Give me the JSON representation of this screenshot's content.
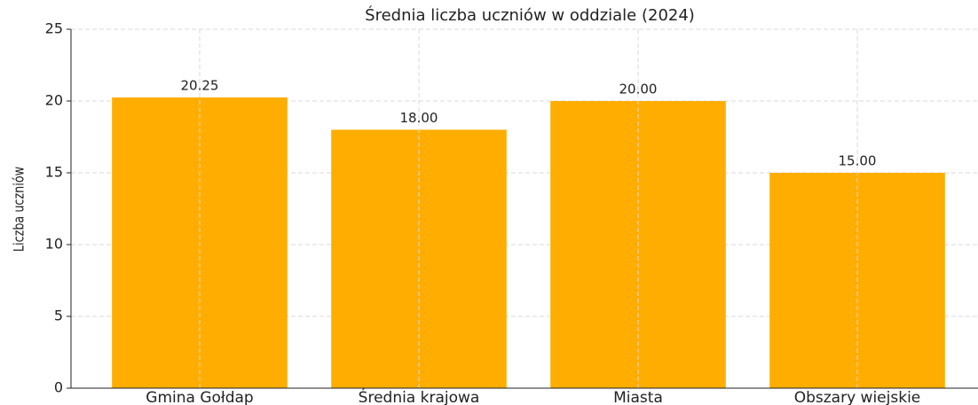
{
  "chart_data": {
    "type": "bar",
    "title": "Średnia liczba uczniów w oddziale (2024)",
    "y_label": "Liczba uczniów",
    "categories": [
      "Gmina Gołdap",
      "Średnia krajowa",
      "Miasta",
      "Obszary wiejskie"
    ],
    "values": [
      20.25,
      18,
      20,
      15
    ],
    "value_labels": [
      "20.25",
      "18.00",
      "20.00",
      "15.00"
    ],
    "color": "#ffad00",
    "ylim": [
      0,
      25
    ],
    "yticks": [
      0,
      5,
      10,
      15,
      20,
      25
    ],
    "grid": true
  }
}
